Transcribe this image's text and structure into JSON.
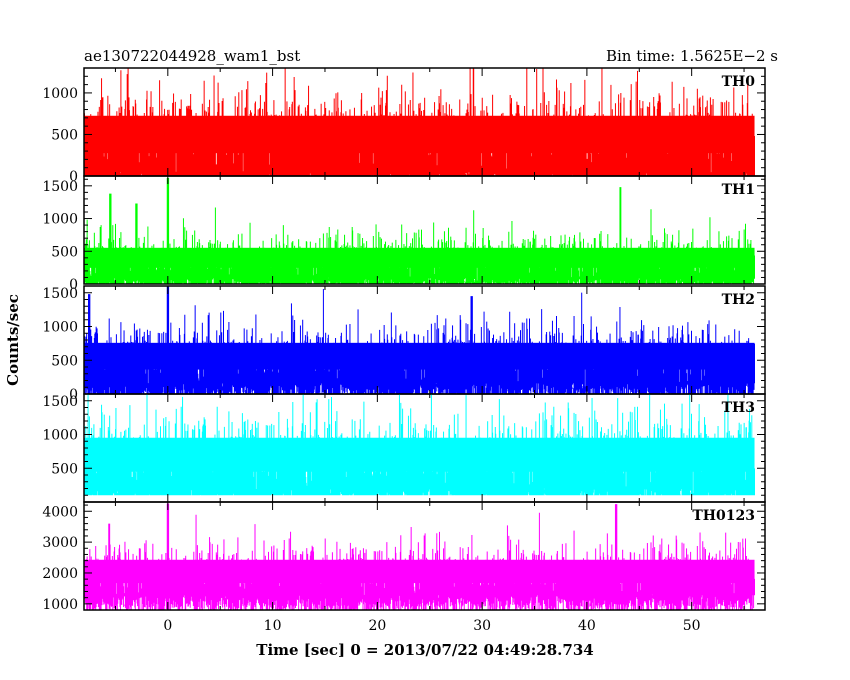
{
  "chart_data": {
    "type": "line",
    "title_left": "ae130722044928_wam1_bst",
    "title_right": "Bin time: 1.5625E−2 s",
    "xlabel": "Time [sec] 0 = 2013/07/22 04:49:28.734",
    "ylabel": "Counts/sec",
    "xlim": [
      -8,
      57
    ],
    "x_ticks": [
      0,
      10,
      20,
      30,
      40,
      50
    ],
    "x_start": -8,
    "x_end": 56,
    "panels": [
      {
        "name": "TH0",
        "color": "#ff0000",
        "ylim": [
          0,
          1300
        ],
        "y_ticks": [
          0,
          500,
          1000
        ],
        "baseline": 0,
        "mean": 500,
        "spread": 250,
        "floor": 0,
        "cap": 1300,
        "spikes": []
      },
      {
        "name": "TH1",
        "color": "#00ff00",
        "ylim": [
          0,
          1650
        ],
        "y_ticks": [
          0,
          500,
          1000,
          1500
        ],
        "baseline": 0,
        "mean": 400,
        "spread": 170,
        "floor": 0,
        "cap": 1650,
        "spikes": [
          [
            0,
            1620
          ],
          [
            -5.5,
            1380
          ],
          [
            43.2,
            1480
          ],
          [
            -3,
            1230
          ]
        ]
      },
      {
        "name": "TH2",
        "color": "#0000ff",
        "ylim": [
          0,
          1600
        ],
        "y_ticks": [
          0,
          500,
          1000,
          1500
        ],
        "baseline": 0,
        "mean": 560,
        "spread": 220,
        "floor": 0,
        "cap": 1600,
        "spikes": [
          [
            0,
            1590
          ],
          [
            -7.5,
            1480
          ],
          [
            29,
            1450
          ]
        ]
      },
      {
        "name": "TH3",
        "color": "#00ffff",
        "ylim": [
          0,
          1600
        ],
        "y_ticks": [
          500,
          1000,
          1500
        ],
        "baseline": 0,
        "mean": 700,
        "spread": 280,
        "floor": 100,
        "cap": 1600,
        "spikes": []
      },
      {
        "name": "TH0123",
        "color": "#ff00ff",
        "ylim": [
          800,
          4300
        ],
        "y_ticks": [
          1000,
          2000,
          3000,
          4000
        ],
        "baseline": 1000,
        "mean": 2050,
        "spread": 420,
        "floor": 800,
        "cap": 4300,
        "spikes": [
          [
            0,
            4250
          ],
          [
            42.8,
            4230
          ],
          [
            -5.6,
            3600
          ]
        ]
      }
    ]
  }
}
